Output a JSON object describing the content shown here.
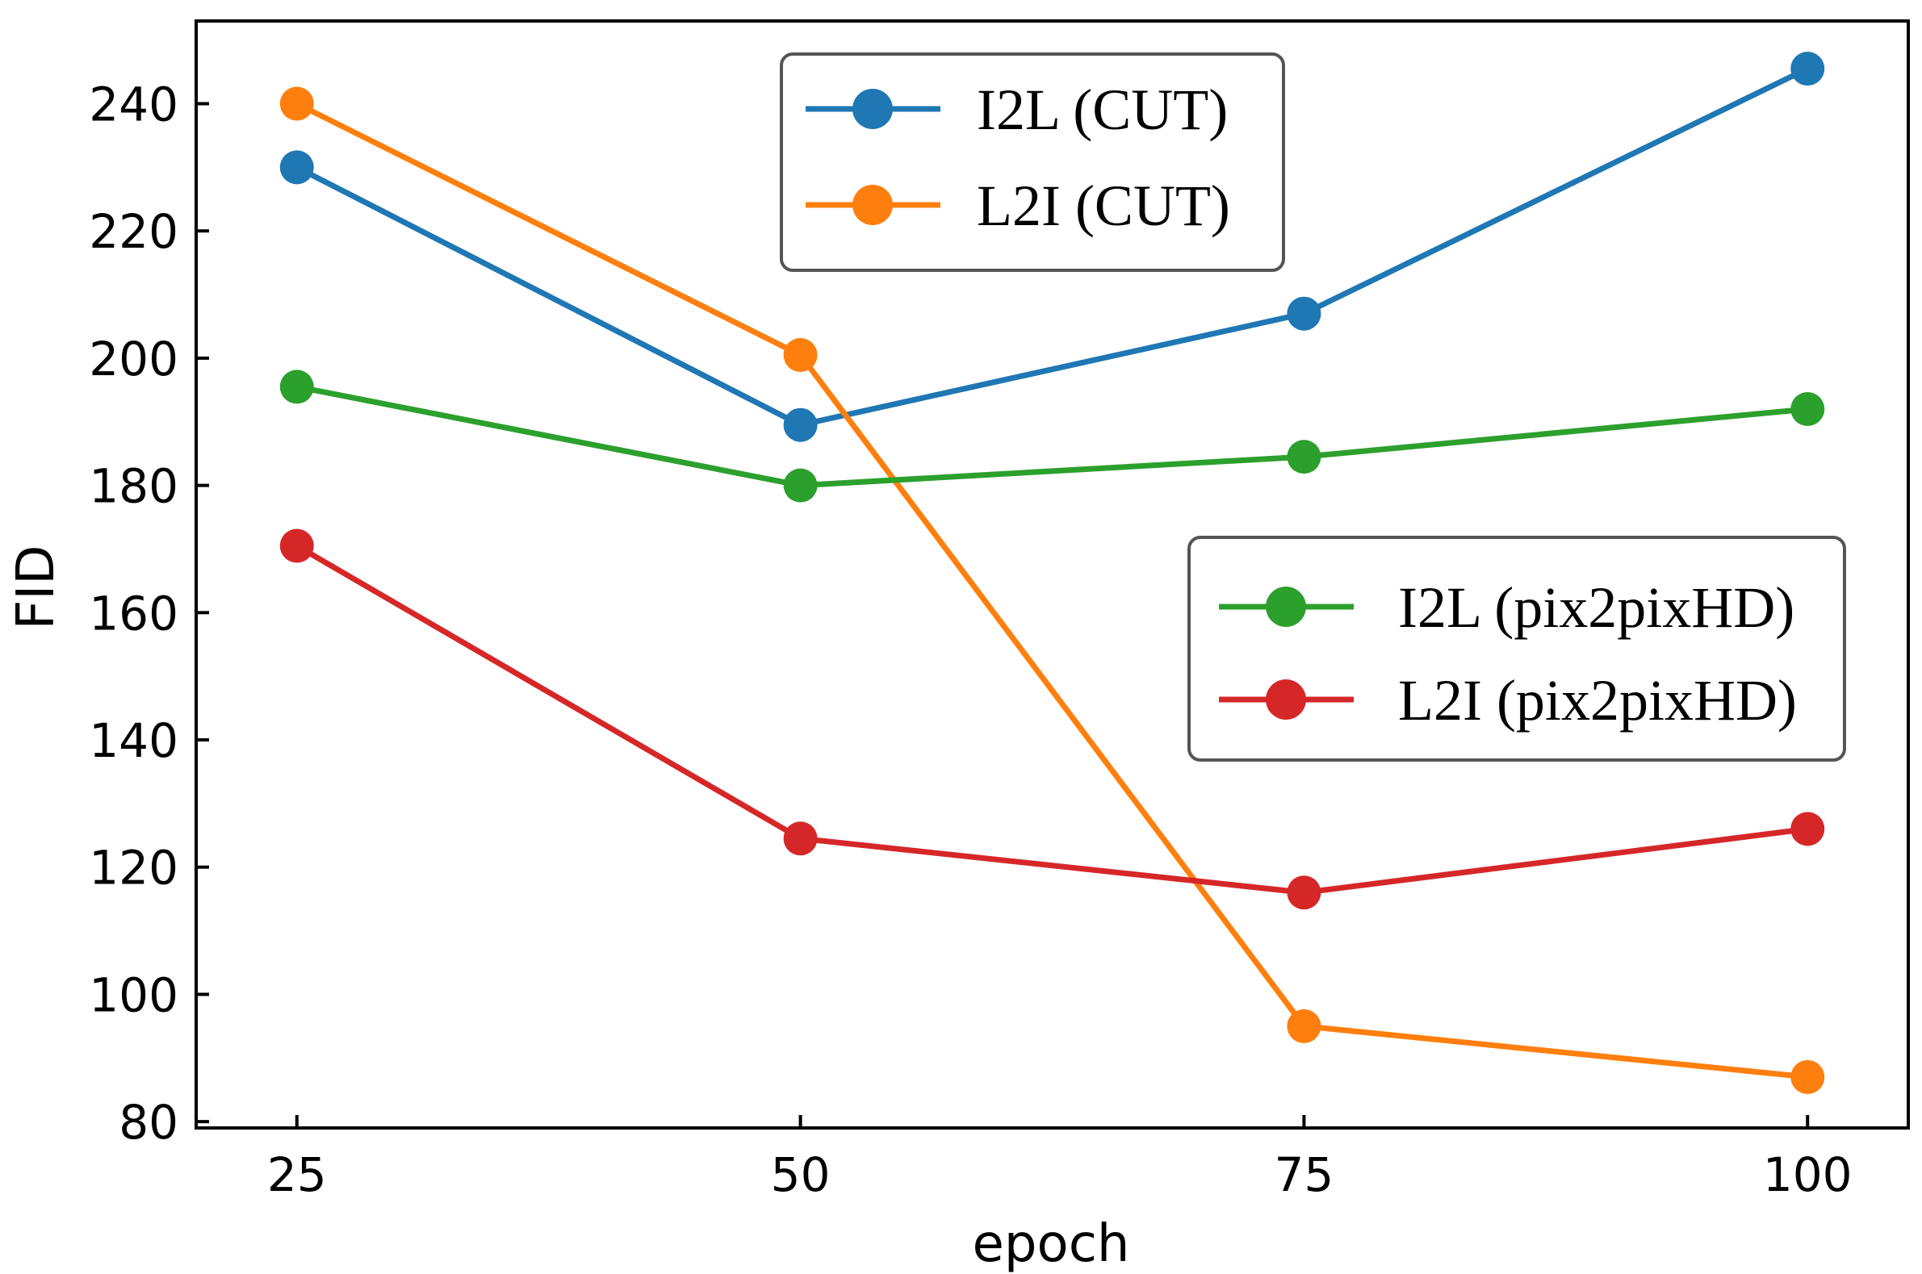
{
  "chart_data": {
    "type": "line",
    "title": "",
    "xlabel": "epoch",
    "ylabel": "FID",
    "x": [
      25,
      50,
      75,
      100
    ],
    "x_tick_labels": [
      "25",
      "50",
      "75",
      "100"
    ],
    "xlim": [
      20,
      105
    ],
    "ylim": [
      79,
      253
    ],
    "y_ticks": [
      80,
      100,
      120,
      140,
      160,
      180,
      200,
      220,
      240
    ],
    "y_tick_labels": [
      "80",
      "100",
      "120",
      "140",
      "160",
      "180",
      "200",
      "220",
      "240"
    ],
    "grid": false,
    "series": [
      {
        "name": "I2L (CUT)",
        "color": "#1f77b4",
        "values": [
          230,
          189.5,
          207,
          245.5
        ]
      },
      {
        "name": "L2I (CUT)",
        "color": "#ff7f0e",
        "values": [
          240,
          200.5,
          95,
          87
        ]
      },
      {
        "name": "I2L (pix2pixHD)",
        "color": "#2ca02c",
        "values": [
          195.5,
          180,
          184.5,
          192
        ]
      },
      {
        "name": "L2I (pix2pixHD)",
        "color": "#d62728",
        "values": [
          170.5,
          124.5,
          116,
          126
        ]
      }
    ],
    "legends": [
      {
        "placement": "top-center",
        "entries": [
          "I2L (CUT)",
          "L2I (CUT)"
        ]
      },
      {
        "placement": "center-right",
        "entries": [
          "I2L (pix2pixHD)",
          "L2I (pix2pixHD)"
        ]
      }
    ]
  }
}
